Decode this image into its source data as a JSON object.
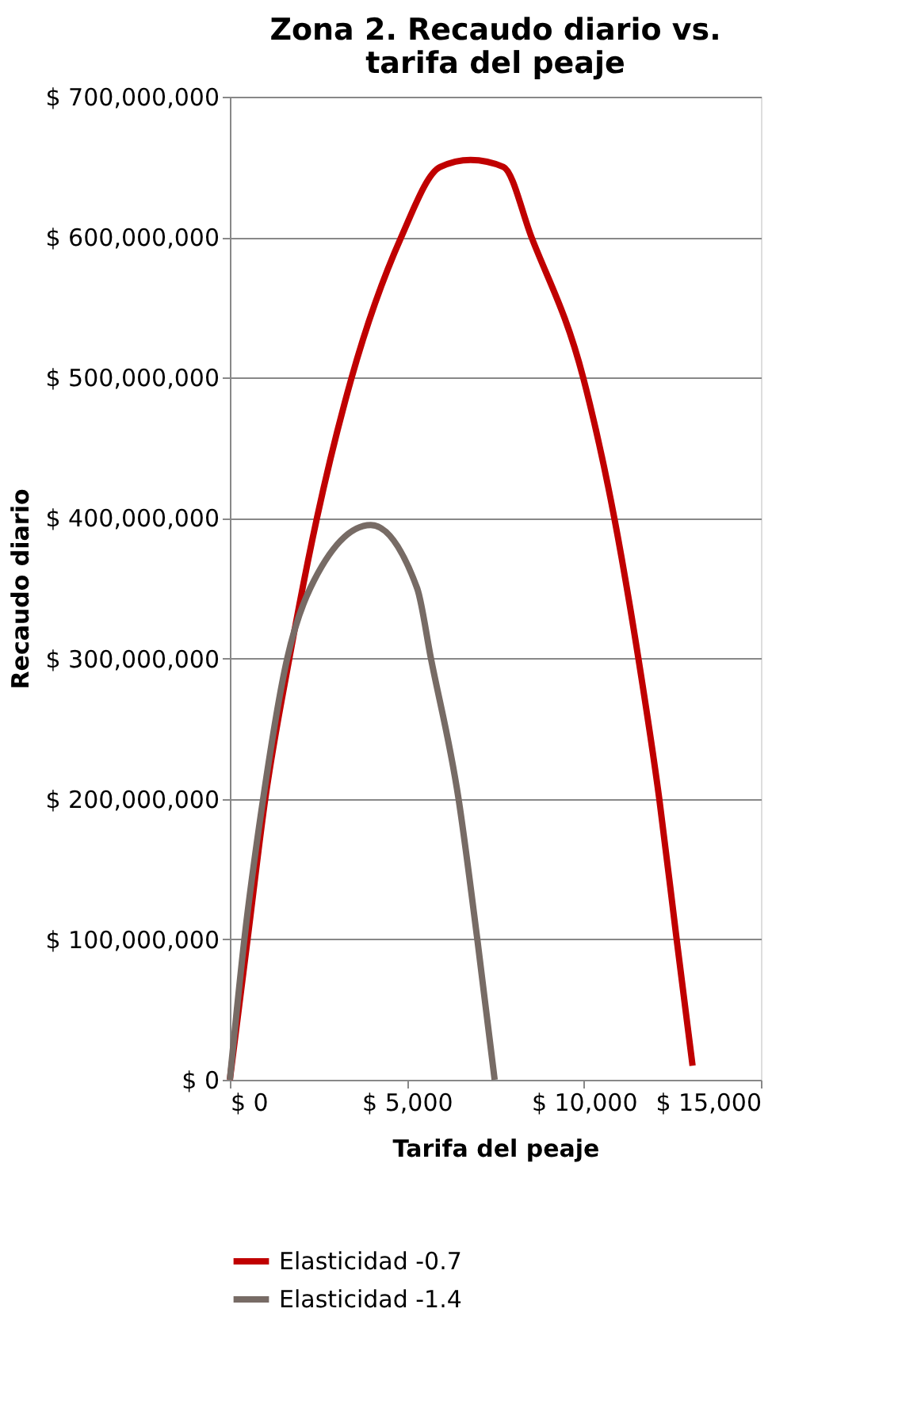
{
  "chart_data": {
    "type": "line",
    "title": "Zona 2. Recaudo diario vs. tarifa  del peaje",
    "xlabel": "Tarifa del peaje",
    "ylabel": "Recaudo diario",
    "xlim": [
      0,
      15000
    ],
    "xticks": [
      {
        "value": 0,
        "label": "$ 0"
      },
      {
        "value": 5000,
        "label": "$ 5,000"
      },
      {
        "value": 10000,
        "label": "$ 10,000"
      },
      {
        "value": 15000,
        "label": "$ 15,000"
      }
    ],
    "ylim": [
      0,
      700000000
    ],
    "yticks": [
      {
        "value": 0,
        "label": "$ 0"
      },
      {
        "value": 100000000,
        "label": "$ 100,000,000"
      },
      {
        "value": 200000000,
        "label": "$ 200,000,000"
      },
      {
        "value": 300000000,
        "label": "$ 300,000,000"
      },
      {
        "value": 400000000,
        "label": "$ 400,000,000"
      },
      {
        "value": 500000000,
        "label": "$ 500,000,000"
      },
      {
        "value": 600000000,
        "label": "$ 600,000,000"
      },
      {
        "value": 700000000,
        "label": "$ 700,000,000"
      }
    ],
    "grid": "y",
    "legend": "bottom",
    "marker": "none",
    "line_style": "solid",
    "series": [
      {
        "name": "Elasticidad -0.7",
        "color": "#c00000",
        "x": [
          0,
          500,
          1000,
          1680,
          2460,
          3440,
          4840,
          5940,
          6800,
          7730,
          8520,
          9980,
          10860,
          11540,
          12130,
          12620,
          13070
        ],
        "values": [
          0,
          100000000,
          200000000,
          300000000,
          400000000,
          500000000,
          600000000,
          650000000,
          655000000,
          650000000,
          600000000,
          500000000,
          400000000,
          300000000,
          200000000,
          100000000,
          10000000
        ]
      },
      {
        "name": "Elasticidad -1.4",
        "color": "#776b65",
        "x": [
          0,
          410,
          940,
          1620,
          2270,
          3980,
          5290,
          5680,
          6460,
          6990,
          7480
        ],
        "values": [
          0,
          100000000,
          200000000,
          300000000,
          350000000,
          395000000,
          350000000,
          300000000,
          200000000,
          100000000,
          0
        ]
      }
    ]
  }
}
